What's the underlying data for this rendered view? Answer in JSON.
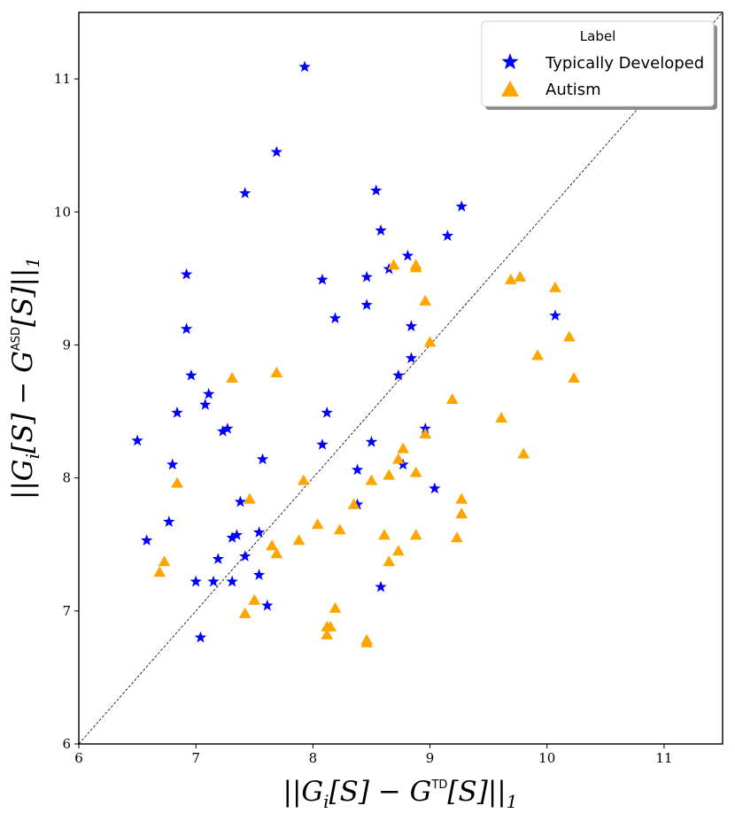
{
  "chart_data": {
    "type": "scatter",
    "xlim": [
      6,
      11.5
    ],
    "ylim": [
      6,
      11.5
    ],
    "xticks": [
      6,
      7,
      8,
      9,
      10,
      11
    ],
    "yticks": [
      6,
      7,
      8,
      9,
      10,
      11
    ],
    "diagonal": true,
    "xlabel_parts": {
      "pre": "||G",
      "sub": "i",
      "mid": "[S] − G",
      "sup": "TD",
      "post": "[S]||",
      "end": "1"
    },
    "ylabel_parts": {
      "pre": "||G",
      "sub": "i",
      "mid": "[S] − G",
      "sup": "ASD",
      "post": "[S]||",
      "end": "1"
    },
    "legend": {
      "title": "Label",
      "position": "top-right"
    },
    "series": [
      {
        "name": "Typically Developed",
        "marker": "star",
        "color": "#0000ff",
        "points": [
          [
            6.5,
            8.28
          ],
          [
            6.58,
            7.53
          ],
          [
            6.77,
            7.67
          ],
          [
            6.8,
            8.1
          ],
          [
            6.84,
            8.49
          ],
          [
            6.92,
            9.53
          ],
          [
            6.92,
            9.12
          ],
          [
            6.96,
            8.77
          ],
          [
            7.0,
            7.22
          ],
          [
            7.04,
            6.8
          ],
          [
            7.08,
            8.55
          ],
          [
            7.11,
            8.63
          ],
          [
            7.15,
            7.22
          ],
          [
            7.19,
            7.39
          ],
          [
            7.23,
            8.35
          ],
          [
            7.27,
            8.37
          ],
          [
            7.31,
            7.55
          ],
          [
            7.31,
            7.22
          ],
          [
            7.35,
            7.57
          ],
          [
            7.38,
            7.82
          ],
          [
            7.42,
            7.41
          ],
          [
            7.42,
            10.14
          ],
          [
            7.54,
            7.27
          ],
          [
            7.54,
            7.59
          ],
          [
            7.57,
            8.14
          ],
          [
            7.61,
            7.04
          ],
          [
            7.69,
            10.45
          ],
          [
            7.93,
            11.09
          ],
          [
            8.08,
            8.25
          ],
          [
            8.08,
            9.49
          ],
          [
            8.12,
            8.49
          ],
          [
            8.19,
            9.2
          ],
          [
            8.38,
            7.8
          ],
          [
            8.38,
            8.06
          ],
          [
            8.46,
            9.51
          ],
          [
            8.46,
            9.3
          ],
          [
            8.5,
            8.27
          ],
          [
            8.54,
            10.16
          ],
          [
            8.58,
            9.86
          ],
          [
            8.58,
            7.18
          ],
          [
            8.65,
            9.57
          ],
          [
            8.73,
            8.77
          ],
          [
            8.77,
            8.1
          ],
          [
            8.81,
            9.67
          ],
          [
            8.84,
            9.14
          ],
          [
            8.84,
            8.9
          ],
          [
            8.96,
            8.37
          ],
          [
            9.04,
            7.92
          ],
          [
            9.15,
            9.82
          ],
          [
            9.27,
            10.04
          ],
          [
            10.07,
            9.22
          ]
        ]
      },
      {
        "name": "Autism",
        "marker": "triangle",
        "color": "#ffa500",
        "points": [
          [
            6.69,
            7.29
          ],
          [
            6.73,
            7.37
          ],
          [
            6.84,
            7.96
          ],
          [
            7.31,
            8.75
          ],
          [
            7.42,
            6.98
          ],
          [
            7.46,
            7.84
          ],
          [
            7.5,
            7.08
          ],
          [
            7.65,
            7.49
          ],
          [
            7.69,
            7.43
          ],
          [
            7.69,
            8.79
          ],
          [
            7.88,
            7.53
          ],
          [
            7.92,
            7.98
          ],
          [
            8.04,
            7.65
          ],
          [
            8.12,
            6.88
          ],
          [
            8.12,
            6.82
          ],
          [
            8.15,
            6.88
          ],
          [
            8.19,
            7.02
          ],
          [
            8.23,
            7.61
          ],
          [
            8.35,
            7.8
          ],
          [
            8.46,
            6.76
          ],
          [
            8.46,
            6.78
          ],
          [
            8.5,
            7.98
          ],
          [
            8.61,
            7.57
          ],
          [
            8.65,
            7.37
          ],
          [
            8.65,
            8.02
          ],
          [
            8.69,
            9.6
          ],
          [
            8.73,
            7.45
          ],
          [
            8.73,
            8.14
          ],
          [
            8.77,
            8.22
          ],
          [
            8.88,
            8.04
          ],
          [
            8.88,
            7.57
          ],
          [
            8.88,
            9.6
          ],
          [
            8.88,
            9.58
          ],
          [
            8.96,
            9.33
          ],
          [
            8.96,
            8.33
          ],
          [
            9.0,
            9.02
          ],
          [
            9.19,
            8.59
          ],
          [
            9.23,
            7.55
          ],
          [
            9.27,
            7.84
          ],
          [
            9.27,
            7.73
          ],
          [
            9.61,
            8.45
          ],
          [
            9.69,
            9.49
          ],
          [
            9.77,
            9.51
          ],
          [
            9.8,
            8.18
          ],
          [
            9.92,
            8.92
          ],
          [
            10.07,
            9.43
          ],
          [
            10.19,
            9.06
          ],
          [
            10.23,
            8.75
          ]
        ]
      }
    ]
  }
}
